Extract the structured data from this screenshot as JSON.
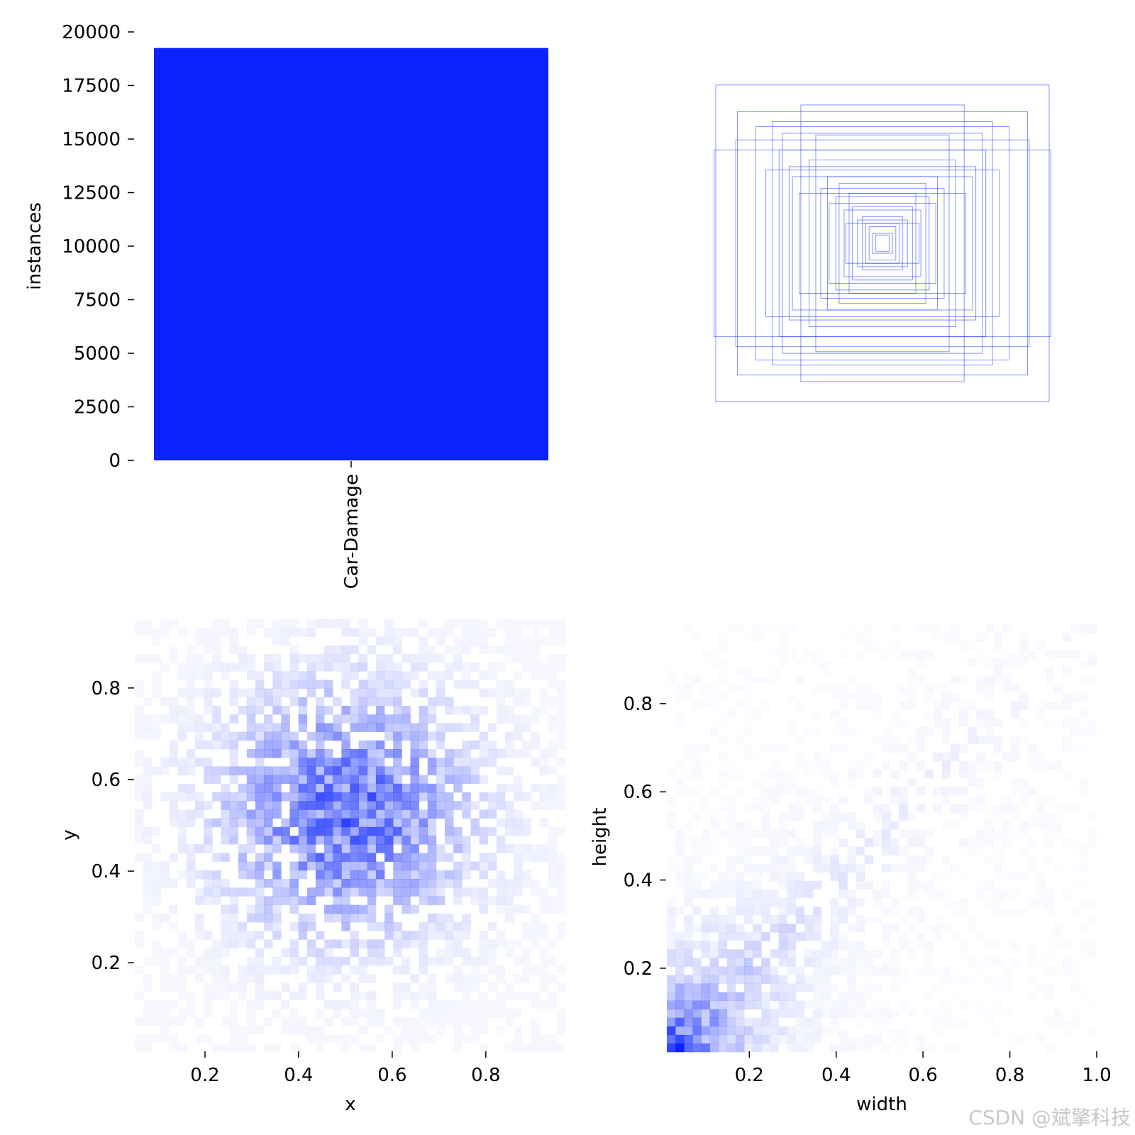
{
  "watermark": "CSDN @斌擎科技",
  "colors": {
    "bar": "#0a23fe",
    "cell": "#0a23fe",
    "box": "#1f3cff"
  },
  "chart_data": [
    {
      "type": "bar",
      "categories": [
        "Car-Damage"
      ],
      "values": [
        19250
      ],
      "ylabel": "instances",
      "xlabel": "",
      "ylim": [
        0,
        20000
      ],
      "yticks": [
        "0",
        "2500",
        "5000",
        "7500",
        "10000",
        "12500",
        "15000",
        "17500",
        "20000"
      ],
      "yticks_values": [
        0,
        2500,
        5000,
        7500,
        10000,
        12500,
        15000,
        17500,
        20000
      ]
    },
    {
      "type": "scatter",
      "title": "",
      "description_values": "centered box outlines (width, height) normalized",
      "boxes": [
        [
          1.0,
          0.95
        ],
        [
          0.49,
          0.83
        ],
        [
          0.87,
          0.79
        ],
        [
          0.76,
          0.7
        ],
        [
          1.01,
          0.56
        ],
        [
          0.88,
          0.62
        ],
        [
          0.62,
          0.56
        ],
        [
          0.56,
          0.46
        ],
        [
          0.66,
          0.73
        ],
        [
          0.4,
          0.65
        ],
        [
          0.54,
          0.4
        ],
        [
          0.33,
          0.4
        ],
        [
          0.37,
          0.33
        ],
        [
          0.28,
          0.28
        ],
        [
          0.23,
          0.2
        ],
        [
          0.18,
          0.22
        ],
        [
          0.15,
          0.14
        ],
        [
          0.12,
          0.16
        ],
        [
          0.08,
          0.1
        ],
        [
          0.06,
          0.06
        ],
        [
          0.32,
          0.24
        ],
        [
          0.44,
          0.5
        ],
        [
          0.26,
          0.36
        ],
        [
          0.7,
          0.44
        ],
        [
          0.5,
          0.3
        ],
        [
          0.2,
          0.3
        ],
        [
          0.1,
          0.12
        ],
        [
          0.04,
          0.05
        ],
        [
          0.22,
          0.12
        ],
        [
          0.6,
          0.66
        ]
      ]
    },
    {
      "type": "heatmap",
      "xlabel": "x",
      "ylabel": "y",
      "xlim": [
        0.05,
        0.97
      ],
      "ylim": [
        0.005,
        0.95
      ],
      "xticks": [
        "0.2",
        "0.4",
        "0.6",
        "0.8"
      ],
      "xticks_values": [
        0.2,
        0.4,
        0.6,
        0.8
      ],
      "yticks": [
        "0.2",
        "0.4",
        "0.6",
        "0.8"
      ],
      "yticks_values": [
        0.2,
        0.4,
        0.6,
        0.8
      ],
      "center": [
        0.5,
        0.53
      ],
      "spread": [
        0.17,
        0.17
      ]
    },
    {
      "type": "heatmap",
      "xlabel": "width",
      "ylabel": "height",
      "xlim": [
        0.01,
        1.0
      ],
      "ylim": [
        0.01,
        0.98
      ],
      "xticks": [
        "0.2",
        "0.4",
        "0.6",
        "0.8",
        "1.0"
      ],
      "xticks_values": [
        0.2,
        0.4,
        0.6,
        0.8,
        1.0
      ],
      "yticks": [
        "0.2",
        "0.4",
        "0.6",
        "0.8"
      ],
      "yticks_values": [
        0.2,
        0.4,
        0.6,
        0.8
      ],
      "peak": [
        0.03,
        0.03
      ]
    }
  ]
}
